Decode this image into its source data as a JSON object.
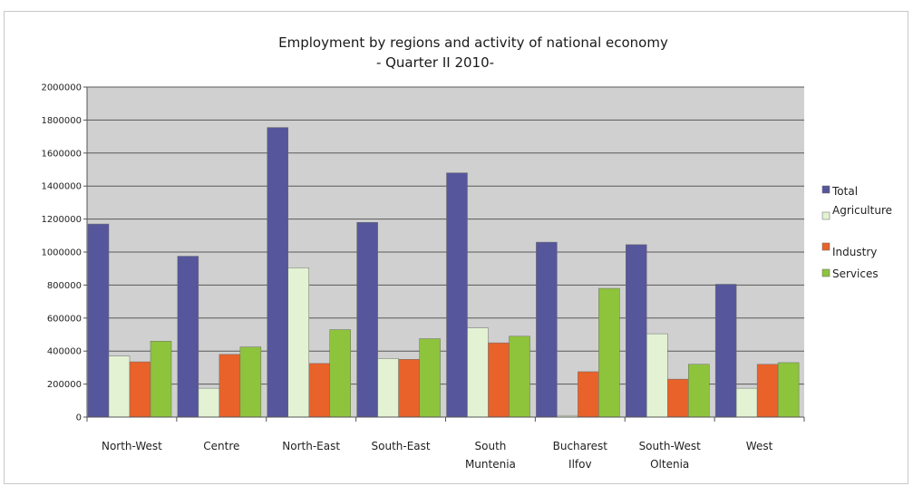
{
  "chart_data": {
    "type": "bar",
    "title": "Employment by regions and activity of national economy",
    "subtitle": "- Quarter II 2010-",
    "categories": [
      [
        "North-West"
      ],
      [
        "Centre"
      ],
      [
        "North-East"
      ],
      [
        "South-East"
      ],
      [
        "South",
        "Muntenia"
      ],
      [
        "Bucharest",
        "Ilfov"
      ],
      [
        "South-West",
        "Oltenia"
      ],
      [
        "West"
      ]
    ],
    "series": [
      {
        "name": "Total",
        "color": "#56569c",
        "values": [
          1170000,
          975000,
          1755000,
          1180000,
          1480000,
          1060000,
          1045000,
          805000
        ]
      },
      {
        "name": "Agriculture",
        "color": "#e2f2d3",
        "values": [
          370000,
          175000,
          905000,
          355000,
          540000,
          10000,
          505000,
          175000
        ]
      },
      {
        "name": "Industry",
        "color": "#e8622a",
        "values": [
          335000,
          380000,
          325000,
          350000,
          450000,
          275000,
          230000,
          320000
        ]
      },
      {
        "name": "Services",
        "color": "#8ec33c",
        "values": [
          460000,
          425000,
          530000,
          475000,
          490000,
          780000,
          320000,
          330000
        ]
      }
    ],
    "ylim": [
      0,
      2000000
    ],
    "yticks": [
      "0",
      "200000",
      "400000",
      "600000",
      "800000",
      "1000000",
      "1200000",
      "1400000",
      "1600000",
      "1800000",
      "2000000"
    ],
    "grid": true,
    "legend_position": "right",
    "plot_background": "#d0d0d0"
  }
}
